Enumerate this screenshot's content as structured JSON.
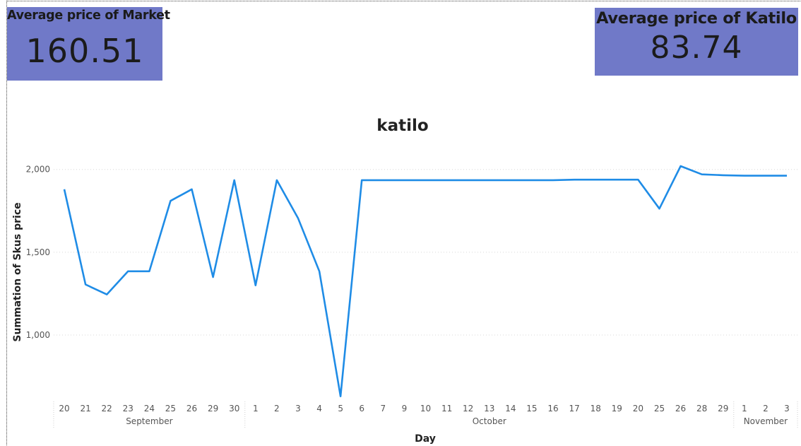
{
  "cards": {
    "market": {
      "title": "Average price of Market",
      "value": "160.51"
    },
    "katilo": {
      "title": "Average price of Katilo",
      "value": "83.74"
    }
  },
  "colors": {
    "card_bg": "#7079c8",
    "line": "#1f8ce6",
    "grid": "#d8d8d8"
  },
  "chart_data": {
    "type": "line",
    "title": "katilo",
    "xlabel": "Day",
    "ylabel": "Summation of Skus price",
    "ylim": [
      620,
      2050
    ],
    "yticks": [
      {
        "value": 1000,
        "label": "1,000"
      },
      {
        "value": 1500,
        "label": "1,500"
      },
      {
        "value": 2000,
        "label": "2,000"
      }
    ],
    "grid": true,
    "categories": [
      "20",
      "21",
      "22",
      "23",
      "24",
      "25",
      "26",
      "29",
      "30",
      "1",
      "2",
      "3",
      "4",
      "5",
      "6",
      "7",
      "9",
      "10",
      "11",
      "12",
      "13",
      "14",
      "15",
      "16",
      "17",
      "18",
      "19",
      "20",
      "25",
      "26",
      "28",
      "29",
      "1",
      "2",
      "3"
    ],
    "months": [
      {
        "label": "September",
        "start": 0,
        "end": 8
      },
      {
        "label": "October",
        "start": 9,
        "end": 31
      },
      {
        "label": "November",
        "start": 32,
        "end": 34
      }
    ],
    "series": [
      {
        "values": [
          1880,
          1305,
          1245,
          1385,
          1385,
          1810,
          1880,
          1350,
          1935,
          1300,
          1935,
          1705,
          1385,
          630,
          1935,
          1935,
          1935,
          1935,
          1935,
          1935,
          1935,
          1935,
          1935,
          1935,
          1938,
          1938,
          1938,
          1938,
          1763,
          2020,
          1970,
          1965,
          1962,
          1962,
          1962
        ]
      }
    ]
  }
}
